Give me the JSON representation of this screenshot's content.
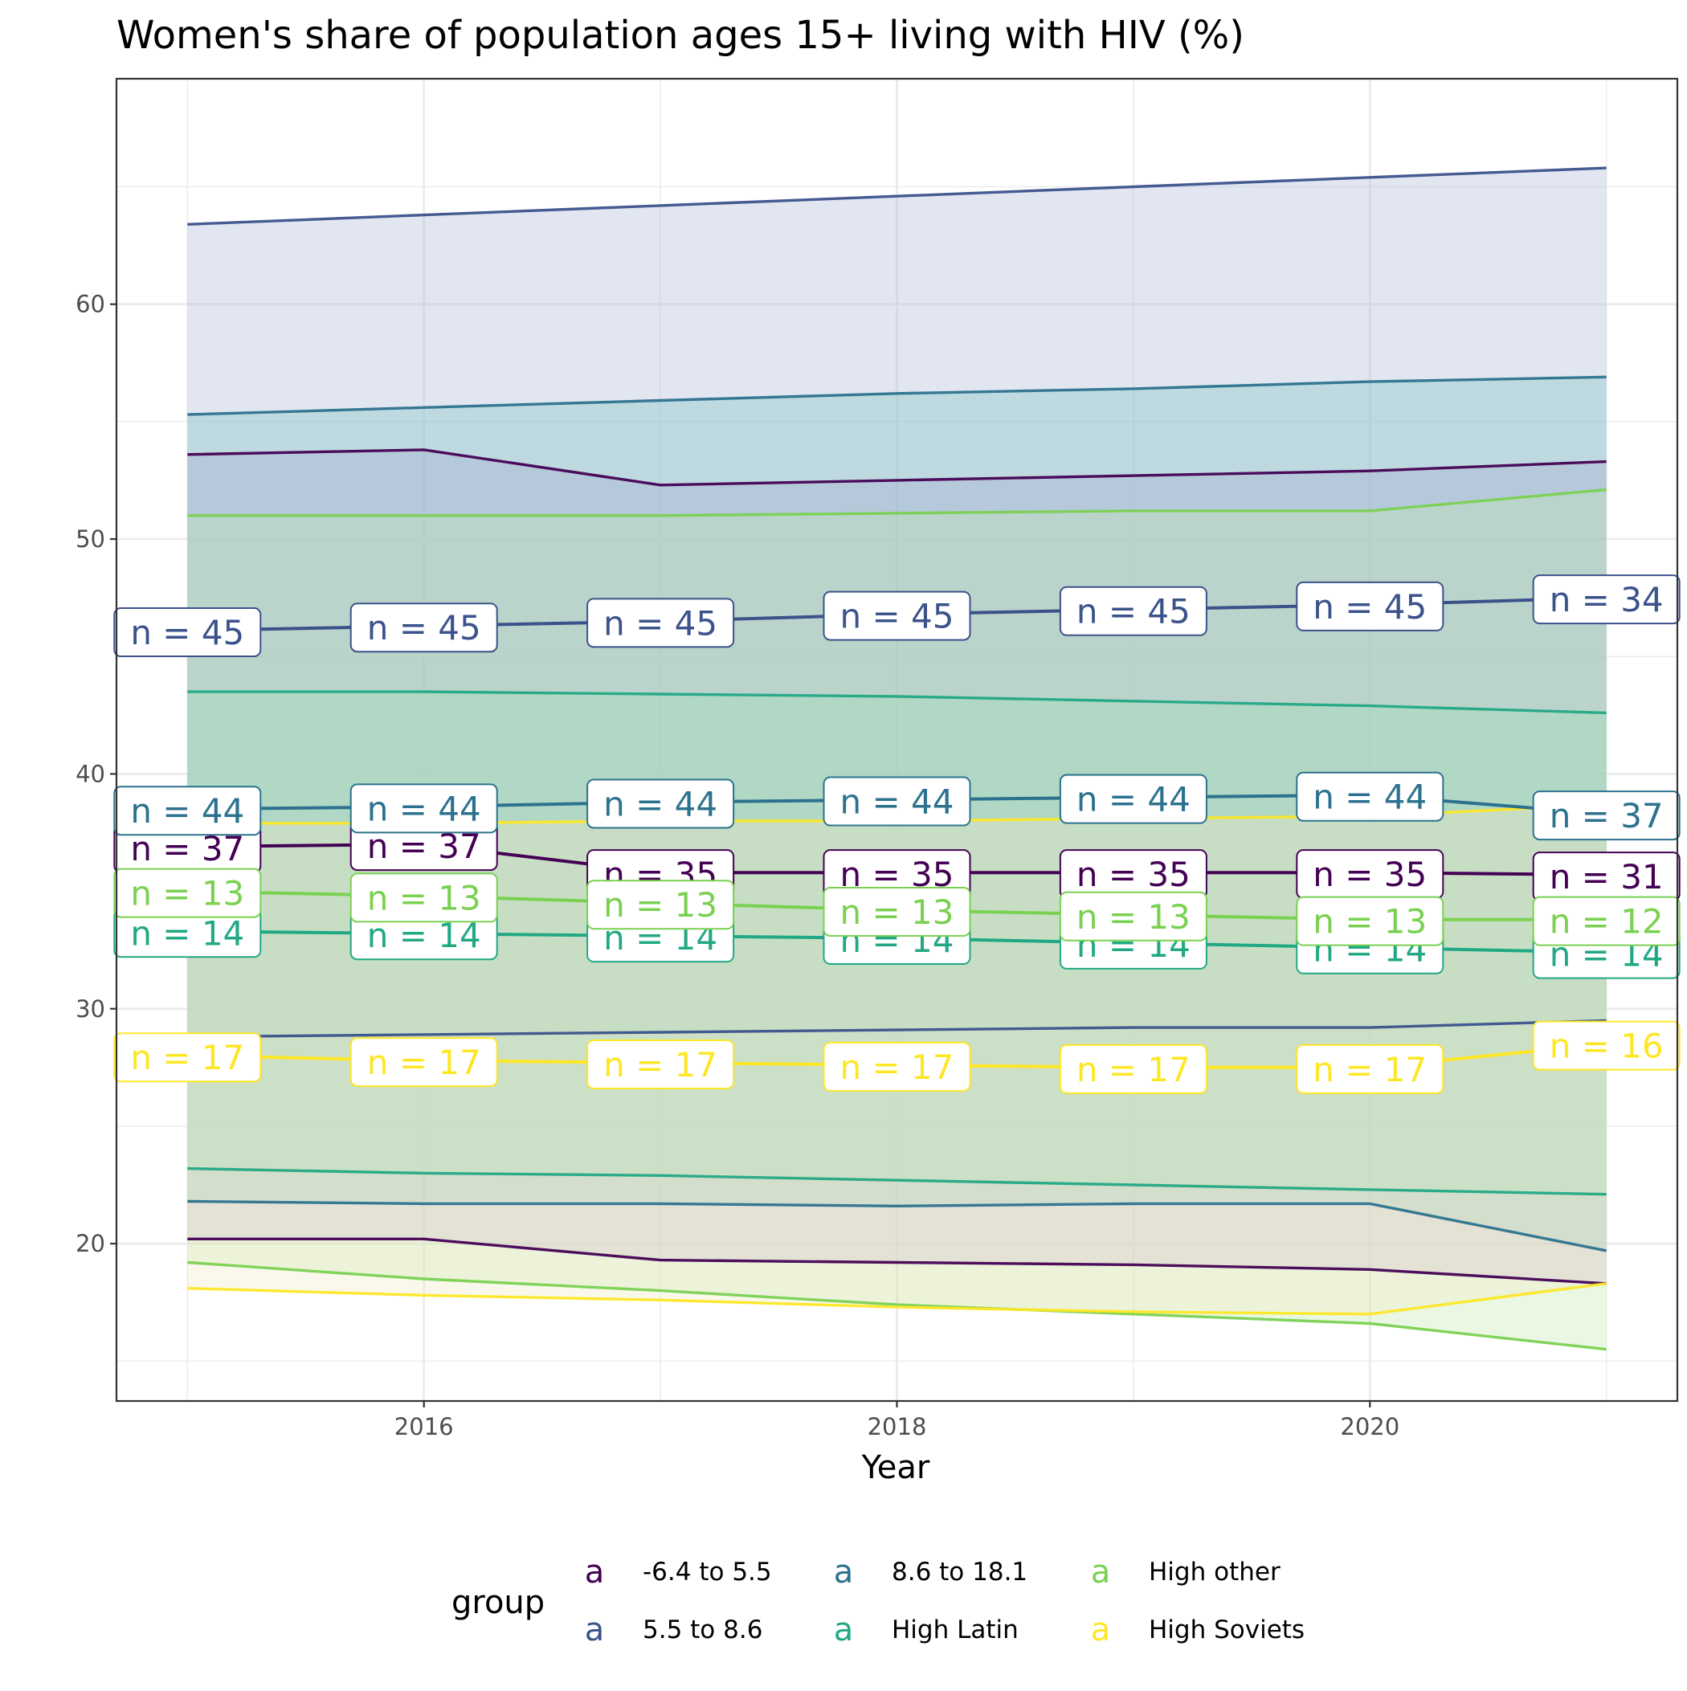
{
  "chart_data": {
    "type": "line",
    "title": "Women's share of population ages 15+ living with HIV (%)",
    "xlabel": "Year",
    "ylabel": "",
    "x": [
      2015,
      2016,
      2017,
      2018,
      2019,
      2020,
      2021
    ],
    "xlim": [
      2014.7,
      2021.3
    ],
    "ylim": [
      13.3,
      69.6
    ],
    "x_ticks": [
      2016,
      2018,
      2020
    ],
    "x_tick_labels": [
      "2016",
      "2018",
      "2020"
    ],
    "y_ticks": [
      20,
      30,
      40,
      50,
      60
    ],
    "y_tick_labels": [
      "20",
      "30",
      "40",
      "50",
      "60"
    ],
    "grid": true,
    "legend": {
      "title": "group",
      "position": "bottom",
      "key_glyph": "a",
      "entries": [
        "-6.4 to 5.5",
        "5.5 to 8.6",
        "8.6 to 18.1",
        "High Latin",
        "High other",
        "High Soviets"
      ]
    },
    "series": [
      {
        "name": "-6.4 to 5.5",
        "color": "#440154",
        "ribbon_fill": "#c58ee0",
        "median": [
          36.9,
          37.0,
          35.8,
          35.8,
          35.8,
          35.8,
          35.7
        ],
        "lower": [
          20.2,
          20.2,
          19.3,
          19.2,
          19.1,
          18.9,
          18.3
        ],
        "upper": [
          53.6,
          53.8,
          52.3,
          52.5,
          52.7,
          52.9,
          53.3
        ],
        "n_labels": [
          "n = 37",
          "n = 37",
          "n = 35",
          "n = 35",
          "n = 35",
          "n = 35",
          "n = 31"
        ]
      },
      {
        "name": "5.5 to 8.6",
        "color": "#3b528b",
        "ribbon_fill": "#a8b6d8",
        "median": [
          46.1,
          46.3,
          46.5,
          46.8,
          47.0,
          47.2,
          47.5
        ],
        "lower": [
          28.8,
          28.9,
          29.0,
          29.1,
          29.2,
          29.2,
          29.5
        ],
        "upper": [
          63.4,
          63.8,
          64.2,
          64.6,
          65.0,
          65.4,
          65.8
        ],
        "n_labels": [
          "n = 45",
          "n = 45",
          "n = 45",
          "n = 45",
          "n = 45",
          "n = 45",
          "n = 34"
        ]
      },
      {
        "name": "8.6 to 18.1",
        "color": "#21908d",
        "line_color": "#2c728e",
        "ribbon_fill": "#7fc3c1",
        "median": [
          38.5,
          38.6,
          38.8,
          38.9,
          39.0,
          39.1,
          38.3
        ],
        "lower": [
          21.8,
          21.7,
          21.7,
          21.6,
          21.7,
          21.7,
          19.7
        ],
        "upper": [
          55.3,
          55.6,
          55.9,
          56.2,
          56.4,
          56.7,
          56.9
        ],
        "n_labels": [
          "n = 44",
          "n = 44",
          "n = 44",
          "n = 44",
          "n = 44",
          "n = 44",
          "n = 37"
        ]
      },
      {
        "name": "High Latin",
        "color": "#22a884",
        "ribbon_fill": "#8fd6bf",
        "median": [
          33.3,
          33.2,
          33.1,
          33.0,
          32.8,
          32.6,
          32.4
        ],
        "lower": [
          23.2,
          23.0,
          22.9,
          22.7,
          22.5,
          22.3,
          22.1
        ],
        "upper": [
          43.5,
          43.5,
          43.4,
          43.3,
          43.1,
          42.9,
          42.6
        ],
        "n_labels": [
          "n = 14",
          "n = 14",
          "n = 14",
          "n = 14",
          "n = 14",
          "n = 14",
          "n = 14"
        ]
      },
      {
        "name": "High other",
        "color": "#7ad151",
        "ribbon_fill": "#c3e8b0",
        "median": [
          35.0,
          34.8,
          34.5,
          34.2,
          34.0,
          33.8,
          33.8
        ],
        "lower": [
          19.2,
          18.5,
          18.0,
          17.4,
          17.0,
          16.6,
          15.5
        ],
        "upper": [
          51.0,
          51.0,
          51.0,
          51.1,
          51.2,
          51.2,
          52.1
        ],
        "n_labels": [
          "n = 13",
          "n = 13",
          "n = 13",
          "n = 13",
          "n = 13",
          "n = 13",
          "n = 12"
        ]
      },
      {
        "name": "High Soviets",
        "color": "#fde725",
        "ribbon_fill": "#f1ecc6",
        "median": [
          28.0,
          27.8,
          27.7,
          27.6,
          27.5,
          27.5,
          28.5
        ],
        "lower": [
          18.1,
          17.8,
          17.6,
          17.3,
          17.1,
          17.0,
          18.3
        ],
        "upper": [
          37.9,
          37.9,
          38.0,
          38.0,
          38.1,
          38.2,
          38.7
        ],
        "n_labels": [
          "n = 17",
          "n = 17",
          "n = 17",
          "n = 17",
          "n = 17",
          "n = 17",
          "n = 16"
        ]
      }
    ]
  }
}
